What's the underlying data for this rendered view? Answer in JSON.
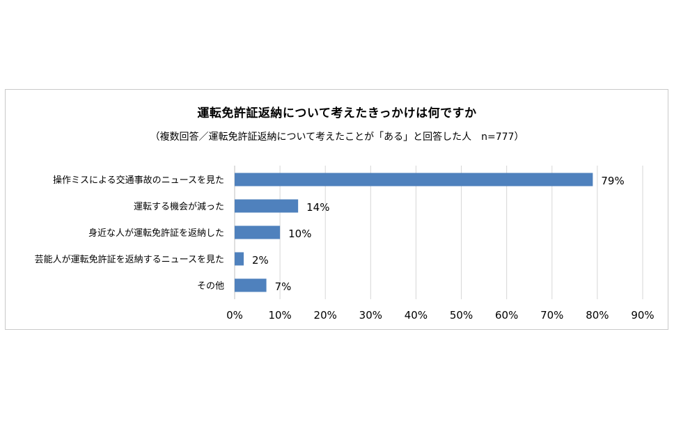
{
  "chart_data": {
    "type": "bar",
    "orientation": "horizontal",
    "title": "運転免許証返納について考えたきっかけは何ですか",
    "subtitle": "（複数回答／運転免許証返納について考えたことが「ある」と回答した人　n=777）",
    "categories": [
      "操作ミスによる交通事故のニュースを見た",
      "運転する機会が減った",
      "身近な人が運転免許証を返納した",
      "芸能人が運転免許証を返納するニュースを見た",
      "その他"
    ],
    "values": [
      79,
      14,
      10,
      2,
      7
    ],
    "value_labels": [
      "79%",
      "14%",
      "10%",
      "2%",
      "7%"
    ],
    "xlim": [
      0,
      90
    ],
    "xticks": [
      0,
      10,
      20,
      30,
      40,
      50,
      60,
      70,
      80,
      90
    ],
    "xtick_labels": [
      "0%",
      "10%",
      "20%",
      "30%",
      "40%",
      "50%",
      "60%",
      "70%",
      "80%",
      "90%"
    ],
    "grid": true,
    "legend": "none",
    "bar_color": "#4f81bd",
    "grid_color": "#d6d6d6"
  }
}
